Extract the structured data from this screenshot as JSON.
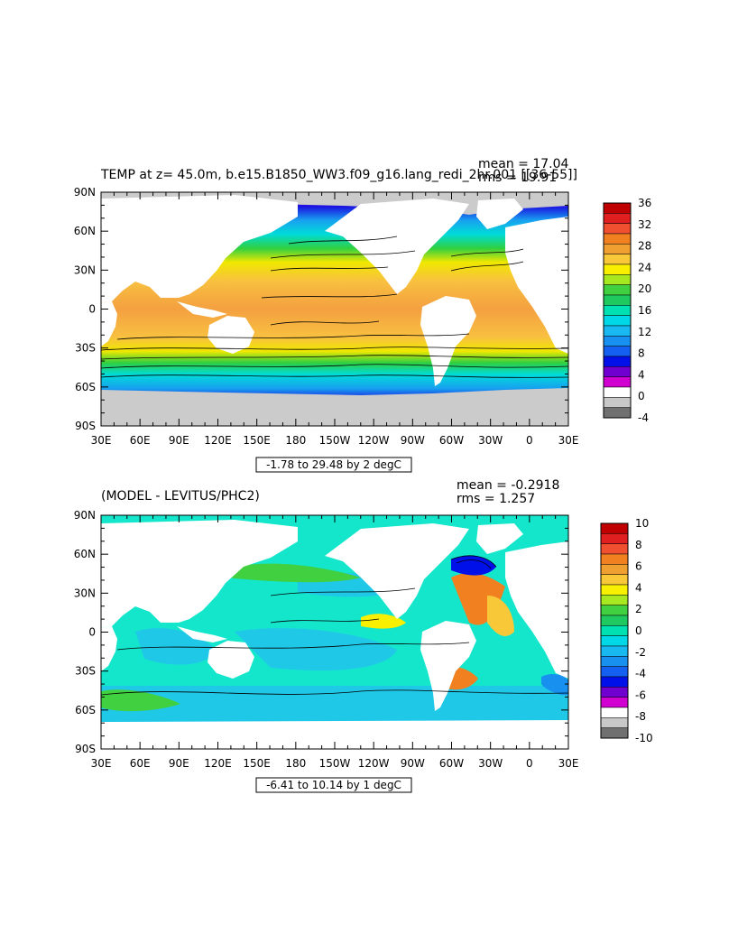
{
  "chart_data": [
    {
      "type": "heatmap",
      "title": "TEMP at z=  45.0m, b.e15.B1850_WW3.f09_g16.lang_redi_2hr.001 [[36-55]]",
      "stats": {
        "mean": "mean = 17.04",
        "rms": "rms = 19.91"
      },
      "range_label": "-1.78 to 29.48 by 2 degC",
      "x_tick_labels": [
        "30E",
        "60E",
        "90E",
        "120E",
        "150E",
        "180",
        "150W",
        "120W",
        "90W",
        "60W",
        "30W",
        "0",
        "30E"
      ],
      "y_tick_labels": [
        "90N",
        "60N",
        "30N",
        "0",
        "30S",
        "60S",
        "90S"
      ],
      "xlim": [
        30,
        390
      ],
      "ylim": [
        -90,
        90
      ],
      "grid": false,
      "legend_position": "right",
      "colorbar": {
        "labels": [
          "36",
          "32",
          "28",
          "24",
          "20",
          "16",
          "12",
          "8",
          "4",
          "0",
          "-4"
        ],
        "colors": [
          "#c00000",
          "#e02020",
          "#f05030",
          "#f08020",
          "#f0a030",
          "#f8c838",
          "#f8f000",
          "#a8e820",
          "#40d040",
          "#20c860",
          "#00e0b0",
          "#00d8e8",
          "#18b8f0",
          "#1890f0",
          "#1460f0",
          "#0010e8",
          "#7000d0",
          "#d000d0",
          "#ffffff",
          "#c8c8c8",
          "#707070"
        ]
      }
    },
    {
      "type": "heatmap",
      "title": "(MODEL - LEVITUS/PHC2)",
      "stats": {
        "mean": "mean = -0.2918",
        "rms": "rms = 1.257"
      },
      "range_label": "-6.41 to 10.14 by 1 degC",
      "x_tick_labels": [
        "30E",
        "60E",
        "90E",
        "120E",
        "150E",
        "180",
        "150W",
        "120W",
        "90W",
        "60W",
        "30W",
        "0",
        "30E"
      ],
      "y_tick_labels": [
        "90N",
        "60N",
        "30N",
        "0",
        "30S",
        "60S",
        "90S"
      ],
      "xlim": [
        30,
        390
      ],
      "ylim": [
        -90,
        90
      ],
      "grid": false,
      "legend_position": "right",
      "colorbar": {
        "labels": [
          "10",
          "8",
          "6",
          "4",
          "2",
          "0",
          "-2",
          "-4",
          "-6",
          "-8",
          "-10"
        ],
        "colors": [
          "#c00000",
          "#e02020",
          "#f05030",
          "#f08020",
          "#f0a030",
          "#f8c838",
          "#f8f000",
          "#a8e820",
          "#40d040",
          "#20c860",
          "#00e0b0",
          "#00d8e8",
          "#18b8f0",
          "#1890f0",
          "#1460f0",
          "#0010e8",
          "#7000d0",
          "#d000d0",
          "#ffffff",
          "#c8c8c8",
          "#707070"
        ]
      }
    }
  ],
  "colors": {
    "land": "#ffffff",
    "sea_ice": "#cbcbcb",
    "warm": "#f4a040",
    "cold": "#1a10e0",
    "anomaly_base": "#14e6cc"
  }
}
